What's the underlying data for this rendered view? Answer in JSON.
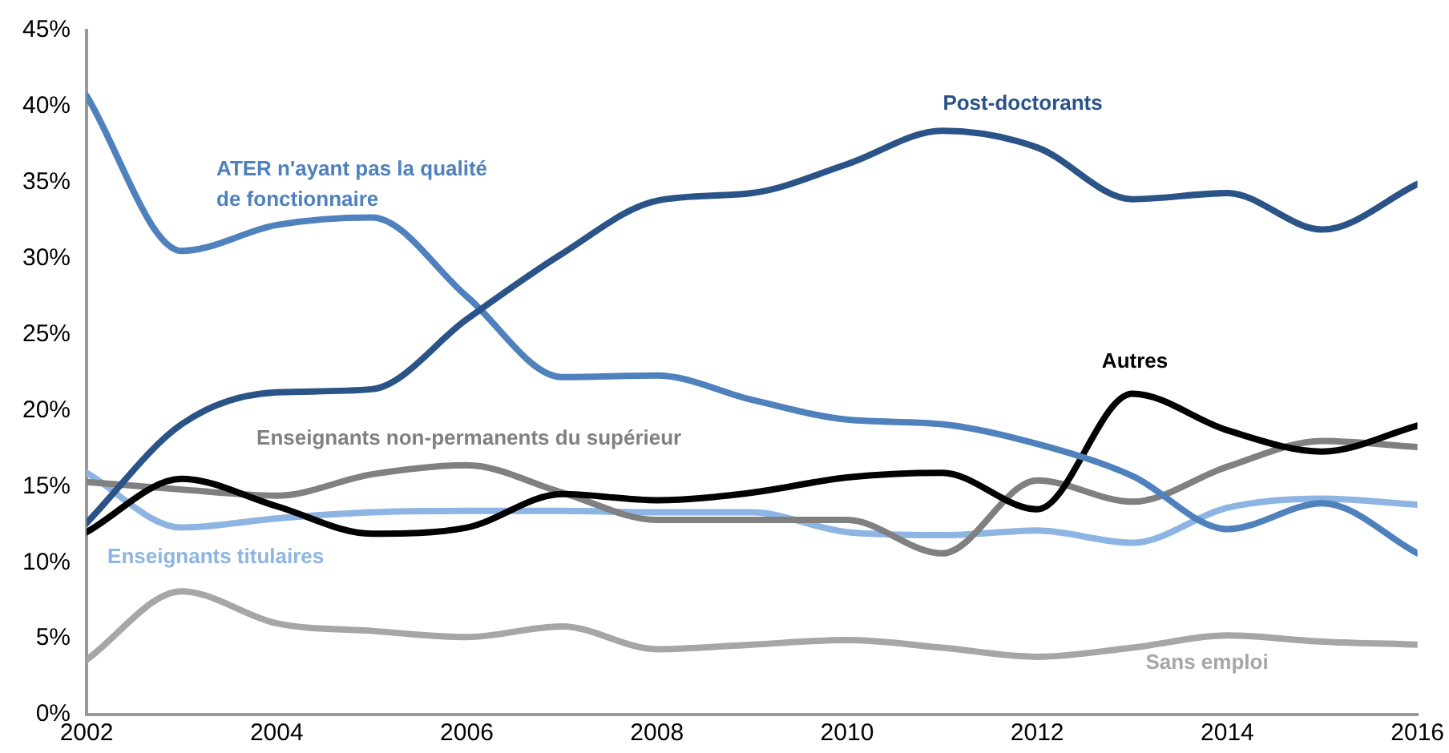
{
  "chart_data": {
    "type": "line",
    "x": [
      2002,
      2003,
      2004,
      2005,
      2006,
      2007,
      2008,
      2009,
      2010,
      2011,
      2012,
      2013,
      2014,
      2015,
      2016
    ],
    "series": [
      {
        "name": "Post-doctorants",
        "color": "#2a5388",
        "values": [
          12.6,
          19.1,
          21.2,
          21.4,
          26,
          30.3,
          33.8,
          34.3,
          36.2,
          38.4,
          37.3,
          33.9,
          34.3,
          31.9,
          34.9
        ]
      },
      {
        "name": "ATER n'ayant pas la qualité de fonctionnaire",
        "color": "#4f81bd",
        "values": [
          40.7,
          30.5,
          32.2,
          32.7,
          27.5,
          22.2,
          22.3,
          20.7,
          19.4,
          19.1,
          17.8,
          15.7,
          12.2,
          13.9,
          10.6
        ]
      },
      {
        "name": "Autres",
        "color": "#000000",
        "values": [
          12,
          15.5,
          13.7,
          11.9,
          12.3,
          14.5,
          14.1,
          14.6,
          15.6,
          15.9,
          13.5,
          21.1,
          18.7,
          17.3,
          19
        ]
      },
      {
        "name": "Enseignants non-permanents du supérieur",
        "color": "#808080",
        "values": [
          15.3,
          14.8,
          14.4,
          15.8,
          16.4,
          14.6,
          12.8,
          12.8,
          12.8,
          10.6,
          15.4,
          14,
          16.3,
          18,
          17.6
        ]
      },
      {
        "name": "Enseignants titulaires",
        "color": "#8db4e2",
        "values": [
          15.9,
          12.3,
          12.9,
          13.3,
          13.4,
          13.4,
          13.3,
          13.3,
          12,
          11.8,
          12.1,
          11.3,
          13.6,
          14.2,
          13.8
        ]
      },
      {
        "name": "Sans emploi",
        "color": "#a6a6a6",
        "values": [
          3.6,
          8.1,
          6,
          5.5,
          5.1,
          5.8,
          4.3,
          4.6,
          4.9,
          4.4,
          3.8,
          4.4,
          5.2,
          4.8,
          4.6
        ]
      }
    ],
    "xlim": [
      2002,
      2016
    ],
    "xticks": [
      2002,
      2004,
      2006,
      2008,
      2010,
      2012,
      2014,
      2016
    ],
    "ylim": [
      0,
      45
    ],
    "yticks": [
      {
        "value": 0,
        "label": "0%"
      },
      {
        "value": 5,
        "label": "5%"
      },
      {
        "value": 10,
        "label": "10%"
      },
      {
        "value": 15,
        "label": "15%"
      },
      {
        "value": 20,
        "label": "20%"
      },
      {
        "value": 25,
        "label": "25%"
      },
      {
        "value": 30,
        "label": "30%"
      },
      {
        "value": 35,
        "label": "35%"
      },
      {
        "value": 40,
        "label": "40%"
      },
      {
        "value": 45,
        "label": "45%"
      }
    ],
    "grid": false,
    "legend": false,
    "marker": "none",
    "line_style": "solid"
  }
}
